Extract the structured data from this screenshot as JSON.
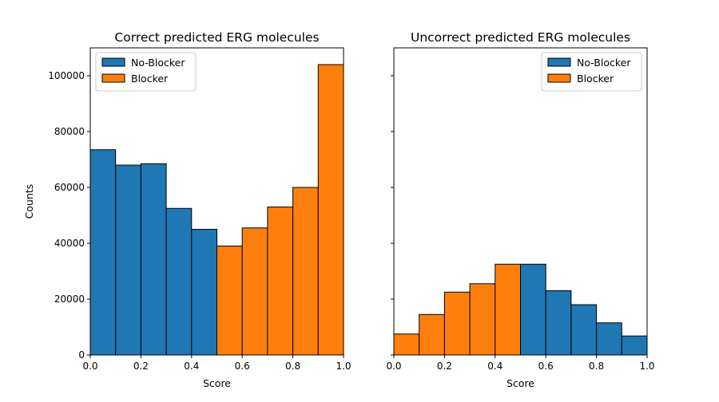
{
  "chart_data": [
    {
      "type": "bar",
      "title": "Correct predicted ERG molecules",
      "xlabel": "Score",
      "ylabel": "Counts",
      "xlim": [
        0,
        1
      ],
      "ylim": [
        0,
        110000
      ],
      "xticks": [
        "0.0",
        "0.2",
        "0.4",
        "0.6",
        "0.8",
        "1.0"
      ],
      "yticks": [
        "0",
        "20000",
        "40000",
        "60000",
        "80000",
        "100000"
      ],
      "bin_edges": [
        0,
        0.1,
        0.2,
        0.3,
        0.4,
        0.5,
        0.6,
        0.7,
        0.8,
        0.9,
        1.0
      ],
      "series": [
        {
          "name": "No-Blocker",
          "color": "#1f77b4",
          "values": [
            73500,
            68000,
            68500,
            52500,
            45000,
            0,
            0,
            0,
            0,
            0
          ]
        },
        {
          "name": "Blocker",
          "color": "#ff7f0e",
          "values": [
            0,
            0,
            0,
            0,
            0,
            39000,
            45500,
            53000,
            60000,
            104000
          ]
        }
      ],
      "legend": "top-left",
      "grid": false
    },
    {
      "type": "bar",
      "title": "Uncorrect predicted ERG molecules",
      "xlabel": "Score",
      "ylabel": "",
      "xlim": [
        0,
        1
      ],
      "ylim": [
        0,
        110000
      ],
      "xticks": [
        "0.0",
        "0.2",
        "0.4",
        "0.6",
        "0.8",
        "1.0"
      ],
      "yticks": [],
      "bin_edges": [
        0,
        0.1,
        0.2,
        0.3,
        0.4,
        0.5,
        0.6,
        0.7,
        0.8,
        0.9,
        1.0
      ],
      "series": [
        {
          "name": "No-Blocker",
          "color": "#1f77b4",
          "values": [
            0,
            0,
            0,
            0,
            0,
            32500,
            23000,
            18000,
            11500,
            6800
          ]
        },
        {
          "name": "Blocker",
          "color": "#ff7f0e",
          "values": [
            7500,
            14500,
            22500,
            25500,
            32500,
            0,
            0,
            0,
            0,
            0
          ]
        }
      ],
      "legend": "top-right",
      "grid": false
    }
  ]
}
